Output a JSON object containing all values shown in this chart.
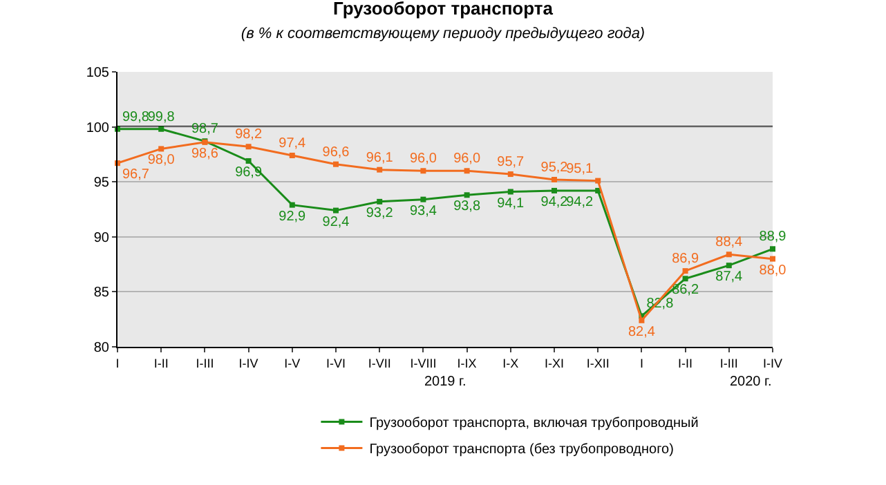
{
  "chart_data": {
    "type": "line",
    "title": "Грузооборот транспорта",
    "subtitle": "(в % к соответствующему периоду предыдущего года)",
    "categories": [
      "I",
      "I-II",
      "I-III",
      "I-IV",
      "I-V",
      "I-VI",
      "I-VII",
      "I-VIII",
      "I-IX",
      "I-X",
      "I-XI",
      "I-XII",
      "I",
      "I-II",
      "I-III",
      "I-IV"
    ],
    "series": [
      {
        "name": "Грузооборот транспорта, включая трубопроводный",
        "color": "#1a8c1a",
        "values": [
          99.8,
          99.8,
          98.7,
          96.9,
          92.9,
          92.4,
          93.2,
          93.4,
          93.8,
          94.1,
          94.2,
          94.2,
          82.8,
          86.2,
          87.4,
          88.9
        ],
        "value_labels": [
          "99,8",
          "99,8",
          "98,7",
          "96,9",
          "92,9",
          "92,4",
          "93,2",
          "93,4",
          "93,8",
          "94,1",
          "94,2",
          "94,2",
          "82,8",
          "86,2",
          "87,4",
          "88,9"
        ]
      },
      {
        "name": "Грузооборот транспорта (без трубопроводного)",
        "color": "#f26c1f",
        "values": [
          96.7,
          98.0,
          98.6,
          98.2,
          97.4,
          96.6,
          96.1,
          96.0,
          96.0,
          95.7,
          95.2,
          95.1,
          82.4,
          86.9,
          88.4,
          88.0
        ],
        "value_labels": [
          "96,7",
          "98,0",
          "98,6",
          "98,2",
          "97,4",
          "96,6",
          "96,1",
          "96,0",
          "96,0",
          "95,7",
          "95,2",
          "95,1",
          "82,4",
          "86,9",
          "88,4",
          "88,0"
        ]
      }
    ],
    "annotations": [
      "2019 г.",
      "2020 г."
    ],
    "ylim": [
      80,
      105
    ],
    "yticks": [
      80,
      85,
      90,
      95,
      100,
      105
    ],
    "grid": "y",
    "legend": "bottom",
    "marker": "square",
    "line_style": "solid",
    "ref_lines": [
      {
        "axis": "y",
        "value": 100,
        "color": "#000000"
      }
    ]
  }
}
